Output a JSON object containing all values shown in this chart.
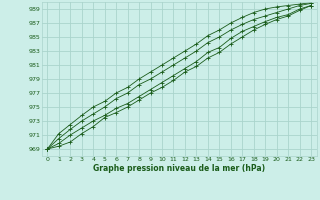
{
  "title": "Graphe pression niveau de la mer (hPa)",
  "bg_color": "#cceee8",
  "grid_color": "#aad4cc",
  "line_color": "#1a5c1a",
  "tick_color": "#1a5c1a",
  "xlim": [
    -0.5,
    23.5
  ],
  "ylim": [
    968,
    990
  ],
  "yticks": [
    969,
    971,
    973,
    975,
    977,
    979,
    981,
    983,
    985,
    987,
    989
  ],
  "xticks": [
    0,
    1,
    2,
    3,
    4,
    5,
    6,
    7,
    8,
    9,
    10,
    11,
    12,
    13,
    14,
    15,
    16,
    17,
    18,
    19,
    20,
    21,
    22,
    23
  ],
  "series": [
    [
      969.0,
      969.4,
      970.0,
      971.2,
      972.2,
      973.5,
      974.2,
      975.0,
      976.0,
      977.0,
      977.8,
      978.8,
      980.0,
      980.8,
      982.0,
      982.8,
      984.0,
      985.0,
      986.0,
      986.8,
      987.5,
      988.0,
      988.8,
      989.5
    ],
    [
      969.0,
      969.8,
      971.0,
      972.0,
      973.0,
      973.8,
      974.8,
      975.5,
      976.5,
      977.5,
      978.5,
      979.5,
      980.5,
      981.5,
      982.8,
      983.5,
      984.8,
      985.8,
      986.5,
      987.2,
      987.8,
      988.2,
      989.0,
      989.5
    ],
    [
      969.0,
      970.5,
      971.8,
      973.0,
      974.0,
      975.0,
      976.2,
      977.0,
      978.2,
      979.0,
      980.0,
      981.0,
      982.0,
      983.0,
      984.2,
      985.0,
      986.0,
      986.8,
      987.5,
      988.0,
      988.5,
      989.0,
      989.5,
      989.8
    ],
    [
      969.0,
      971.2,
      972.5,
      973.8,
      975.0,
      975.8,
      977.0,
      977.8,
      979.0,
      980.0,
      981.0,
      982.0,
      983.0,
      984.0,
      985.2,
      986.0,
      987.0,
      987.8,
      988.5,
      989.0,
      989.3,
      989.5,
      989.7,
      989.9
    ]
  ]
}
